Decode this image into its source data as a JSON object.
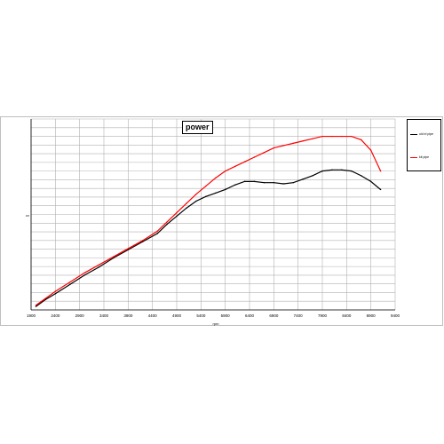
{
  "chart_data": {
    "type": "line",
    "title": "power",
    "xlabel": "rpm",
    "ylabel": "cv",
    "x_ticks": [
      "1900",
      "2400",
      "2900",
      "3400",
      "3900",
      "4400",
      "4900",
      "5400",
      "5900",
      "6400",
      "6900",
      "7400",
      "7900",
      "8400",
      "8900",
      "9400"
    ],
    "xlim": [
      1900,
      9400
    ],
    "grid": true,
    "legend_position": "right",
    "series": [
      {
        "name": "old el pipe",
        "color": "#000000",
        "x": [
          2000,
          2200,
          2400,
          2700,
          3000,
          3300,
          3600,
          3900,
          4200,
          4500,
          4700,
          4900,
          5100,
          5300,
          5500,
          5700,
          5900,
          6100,
          6300,
          6500,
          6700,
          6900,
          7100,
          7300,
          7500,
          7700,
          7900,
          8100,
          8300,
          8500,
          8700,
          8900,
          9100
        ],
        "y": [
          3,
          9,
          14,
          22,
          30,
          37,
          45,
          52,
          59,
          66,
          74,
          81,
          88,
          94,
          98,
          101,
          104,
          108,
          111,
          111,
          110,
          110,
          109,
          110,
          113,
          116,
          120,
          121,
          121,
          120,
          116,
          111,
          104
        ]
      },
      {
        "name": "kit pipe",
        "color": "#ff0000",
        "x": [
          2000,
          2200,
          2400,
          2700,
          3000,
          3300,
          3600,
          3900,
          4200,
          4500,
          4700,
          4900,
          5100,
          5300,
          5500,
          5700,
          5900,
          6100,
          6300,
          6500,
          6700,
          6900,
          7100,
          7300,
          7500,
          7700,
          7900,
          8100,
          8300,
          8500,
          8700,
          8900,
          9100
        ],
        "y": [
          4,
          10,
          16,
          24,
          32,
          39,
          46,
          53,
          60,
          68,
          76,
          84,
          92,
          100,
          107,
          114,
          120,
          124,
          128,
          132,
          136,
          140,
          142,
          144,
          146,
          148,
          150,
          150,
          150,
          150,
          147,
          138,
          120
        ]
      }
    ]
  }
}
